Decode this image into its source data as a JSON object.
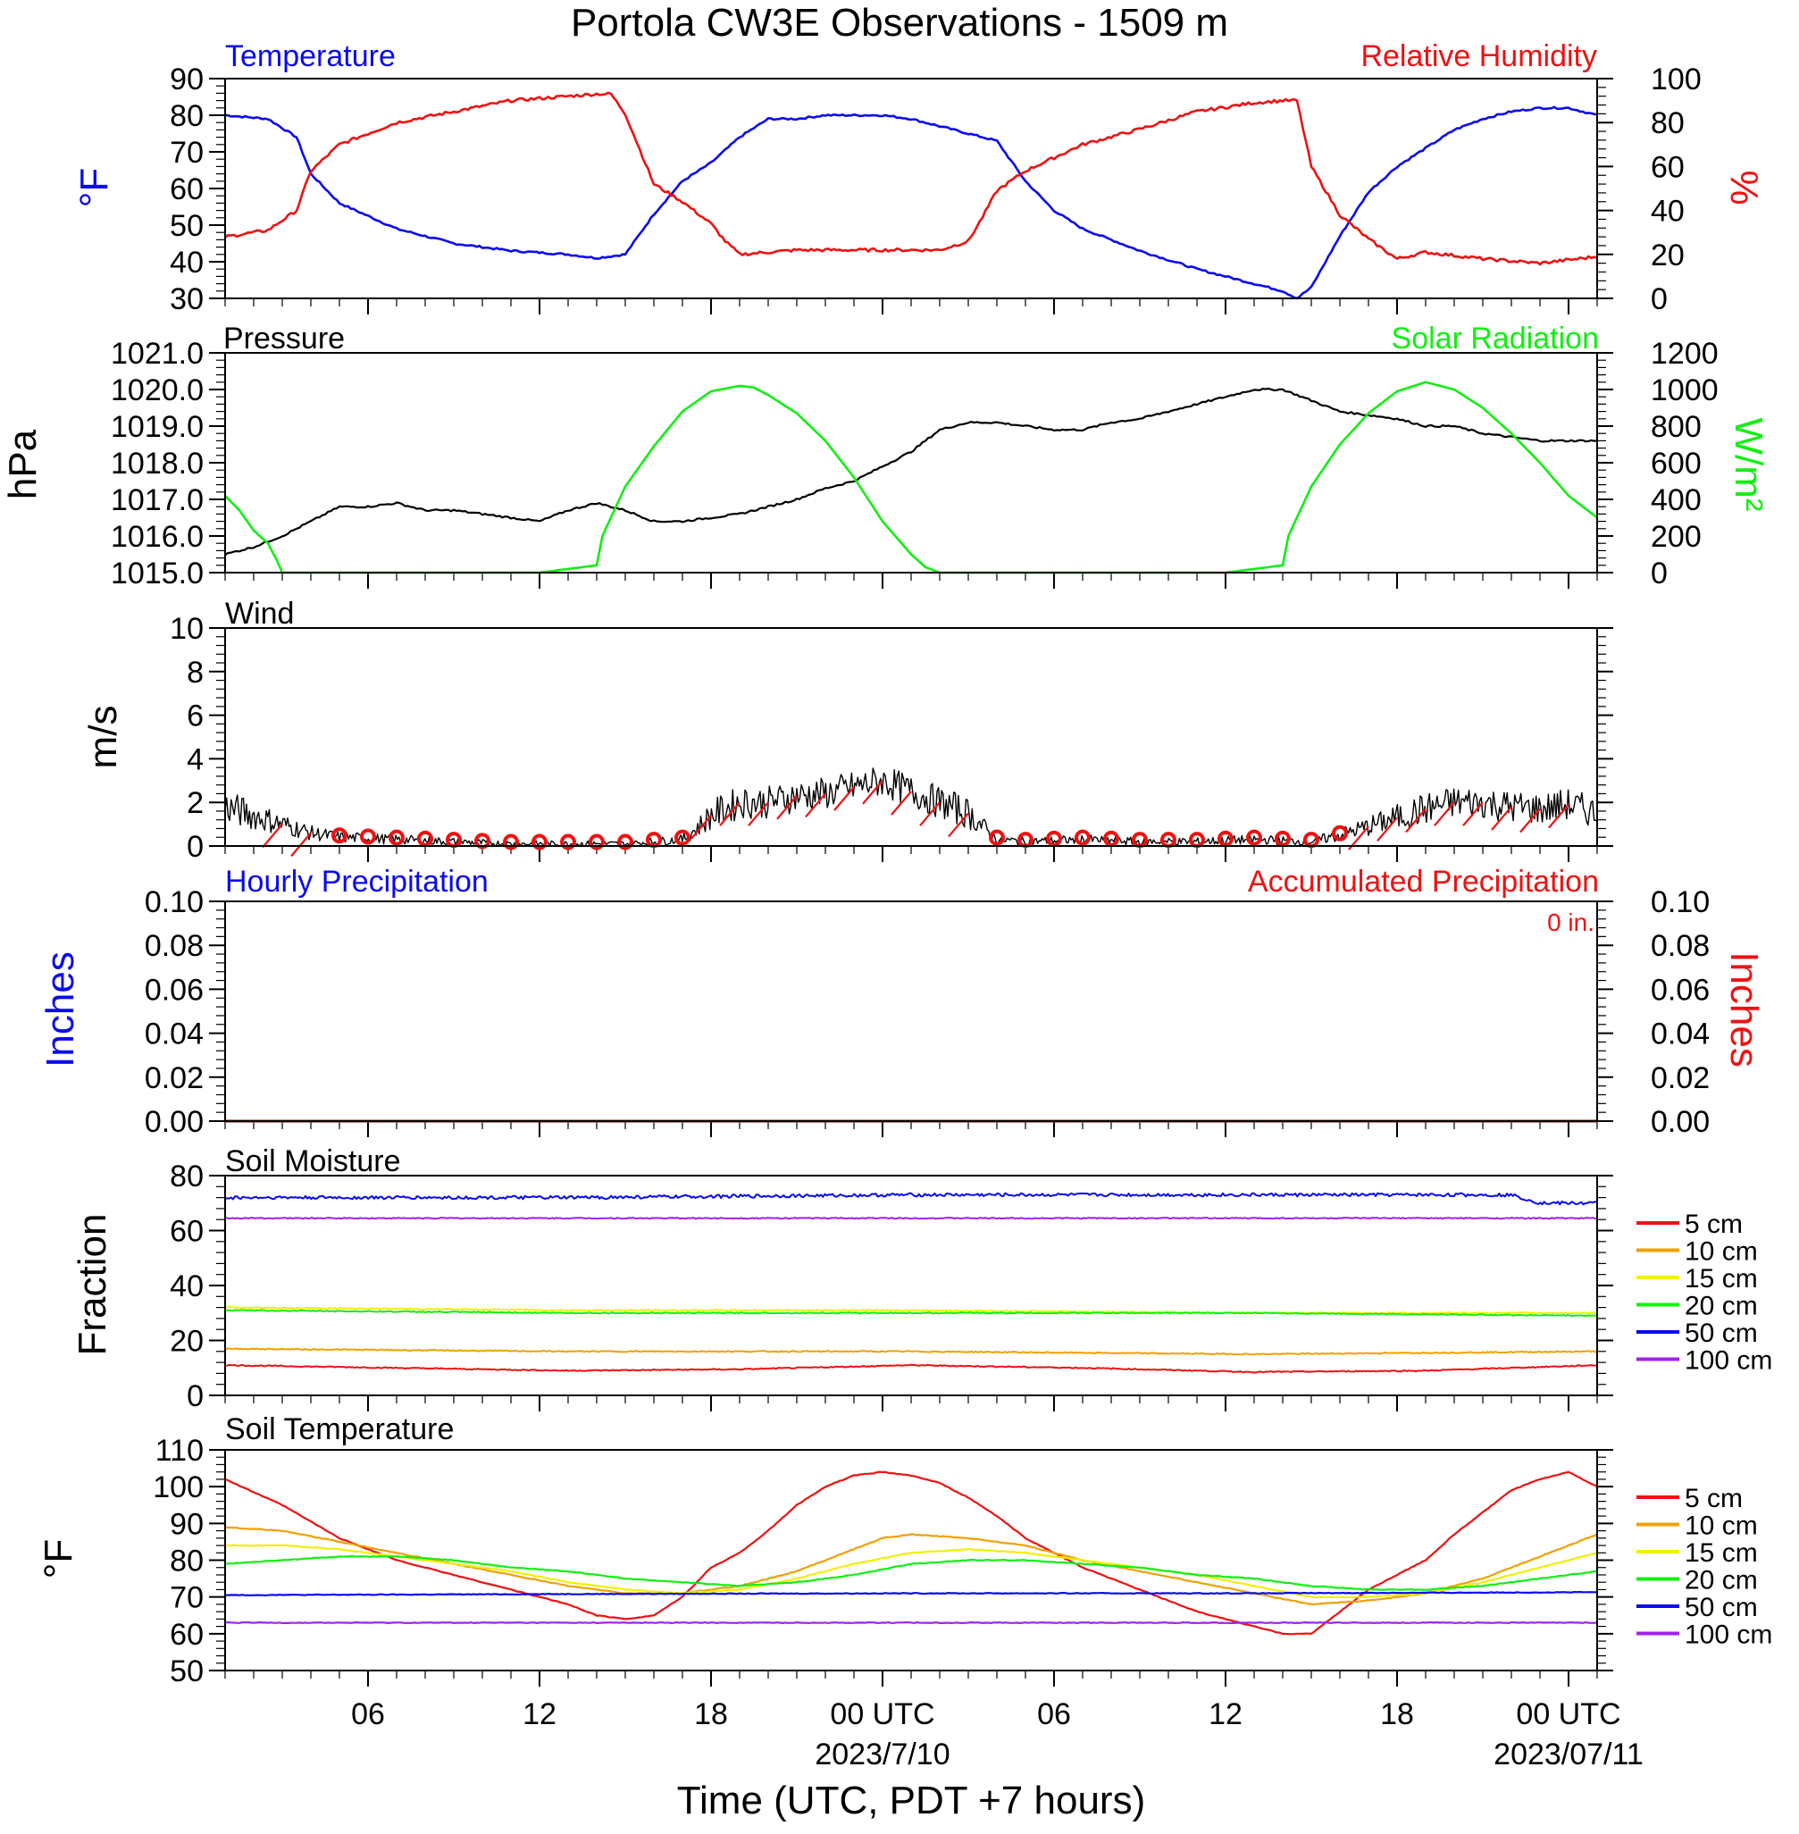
{
  "title": "Portola CW3E Observations - 1509 m",
  "colors": {
    "temperature": "#0a0af0",
    "humidity": "#f01010",
    "pressure": "#000000",
    "solar": "#10f010",
    "wind": "#000000",
    "wind_barb": "#f01010",
    "axis": "#000000"
  },
  "x_axis": {
    "title": "Time (UTC, PDT +7 hours)",
    "range_hours": [
      0,
      48
    ],
    "ticks": [
      {
        "hour": 5,
        "label": "06",
        "date": ""
      },
      {
        "hour": 11,
        "label": "12",
        "date": ""
      },
      {
        "hour": 17,
        "label": "18",
        "date": ""
      },
      {
        "hour": 23,
        "label": "00 UTC",
        "date": "2023/7/10"
      },
      {
        "hour": 29,
        "label": "06",
        "date": ""
      },
      {
        "hour": 35,
        "label": "12",
        "date": ""
      },
      {
        "hour": 41,
        "label": "18",
        "date": ""
      },
      {
        "hour": 47,
        "label": "00 UTC",
        "date": "2023/07/11"
      }
    ]
  },
  "panels": {
    "temp_rh": {
      "left_title": "Temperature",
      "right_title": "Relative Humidity",
      "left_unit": "°F",
      "right_unit": "%",
      "left_ticks": [
        "30",
        "40",
        "50",
        "60",
        "70",
        "80",
        "90"
      ],
      "right_ticks": [
        "0",
        "20",
        "40",
        "60",
        "80",
        "100"
      ]
    },
    "pressure_solar": {
      "left_title": "Pressure",
      "right_title": "Solar Radiation",
      "left_unit": "hPa",
      "right_unit": "W/m²",
      "left_ticks": [
        "1015.0",
        "1016.0",
        "1017.0",
        "1018.0",
        "1019.0",
        "1020.0",
        "1021.0"
      ],
      "right_ticks": [
        "0",
        "200",
        "400",
        "600",
        "800",
        "1000",
        "1200"
      ]
    },
    "wind": {
      "left_title": "Wind",
      "left_unit": "m/s",
      "left_ticks": [
        "0",
        "2",
        "4",
        "6",
        "8",
        "10"
      ]
    },
    "precip": {
      "left_title": "Hourly Precipitation",
      "right_title": "Accumulated Precipitation",
      "accum_label": "0 in.",
      "left_unit": "Inches",
      "right_unit": "Inches",
      "left_ticks": [
        "0.00",
        "0.02",
        "0.04",
        "0.06",
        "0.08",
        "0.10"
      ],
      "right_ticks": [
        "0.00",
        "0.02",
        "0.04",
        "0.06",
        "0.08",
        "0.10"
      ]
    },
    "soil_moisture": {
      "left_title": "Soil Moisture",
      "left_unit": "Fraction",
      "left_ticks": [
        "0",
        "20",
        "40",
        "60",
        "80"
      ],
      "legend": [
        "5 cm",
        "10 cm",
        "15 cm",
        "20 cm",
        "50 cm",
        "100 cm"
      ]
    },
    "soil_temp": {
      "left_title": "Soil Temperature",
      "left_unit": "°F",
      "left_ticks": [
        "50",
        "60",
        "70",
        "80",
        "90",
        "100",
        "110"
      ],
      "legend": [
        "5 cm",
        "10 cm",
        "15 cm",
        "20 cm",
        "50 cm",
        "100 cm"
      ]
    }
  },
  "depth_colors": [
    "#f01010",
    "#f0a000",
    "#f0f000",
    "#10f010",
    "#0a0af0",
    "#a020f0"
  ],
  "chart_data": [
    {
      "type": "line",
      "title": "Temperature",
      "ylabel": "°F",
      "ylim": [
        30,
        90
      ],
      "series": [
        {
          "name": "Temperature",
          "color": "#0a0af0",
          "hours": [
            0,
            1.5,
            2.5,
            3,
            4,
            6,
            8,
            10,
            12,
            13,
            14,
            15,
            16,
            17,
            18,
            19,
            20,
            21,
            22,
            23,
            24,
            25,
            26,
            27,
            28,
            29,
            30,
            32,
            34,
            36,
            37,
            37.5,
            38,
            39,
            40,
            41,
            42,
            43,
            44,
            45,
            46,
            47,
            48
          ],
          "values": [
            80,
            79,
            74,
            64,
            56,
            49,
            45,
            43,
            42,
            41,
            42,
            53,
            62,
            67,
            74,
            79,
            79,
            80,
            80,
            80,
            79,
            77,
            75,
            73,
            62,
            54,
            49,
            43,
            38,
            34,
            32,
            30,
            33,
            47,
            59,
            66,
            71,
            76,
            79,
            81,
            82,
            82,
            80
          ]
        }
      ]
    },
    {
      "type": "line",
      "title": "Relative Humidity",
      "ylabel": "%",
      "ylim": [
        0,
        100
      ],
      "series": [
        {
          "name": "Relative Humidity",
          "color": "#f01010",
          "hours": [
            0,
            1.5,
            2.5,
            3,
            4,
            6,
            8,
            10,
            12,
            13,
            13.5,
            14,
            15,
            16,
            17,
            17.5,
            18,
            20,
            22,
            24,
            25,
            26,
            26.5,
            27,
            28,
            30,
            32,
            34,
            36,
            37,
            37.5,
            38,
            39,
            40,
            41,
            42,
            44,
            46,
            48
          ],
          "values": [
            28,
            31,
            40,
            58,
            70,
            80,
            85,
            90,
            92,
            93,
            93,
            84,
            52,
            44,
            34,
            26,
            20,
            22,
            22,
            22,
            22,
            26,
            37,
            49,
            58,
            70,
            77,
            85,
            89,
            90,
            90,
            60,
            38,
            27,
            18,
            21,
            18,
            16,
            19
          ]
        }
      ]
    },
    {
      "type": "line",
      "title": "Pressure",
      "ylabel": "hPa",
      "ylim": [
        1015,
        1021
      ],
      "series": [
        {
          "name": "Pressure",
          "color": "#000000",
          "hours": [
            0,
            1,
            2,
            3,
            4,
            5,
            6,
            7,
            8,
            9,
            10,
            11,
            12,
            13,
            14,
            15,
            16,
            17,
            18,
            19,
            20,
            21,
            22,
            23,
            24,
            25,
            26,
            27,
            28,
            29,
            30,
            31,
            32,
            33,
            34,
            35,
            36,
            37,
            38,
            39,
            40,
            41,
            42,
            43,
            44,
            45,
            46,
            47,
            48
          ],
          "values": [
            1015.5,
            1015.7,
            1016.0,
            1016.4,
            1016.8,
            1016.8,
            1016.9,
            1016.7,
            1016.7,
            1016.6,
            1016.5,
            1016.4,
            1016.7,
            1016.9,
            1016.7,
            1016.4,
            1016.4,
            1016.5,
            1016.6,
            1016.8,
            1017.0,
            1017.3,
            1017.5,
            1017.9,
            1018.3,
            1018.9,
            1019.1,
            1019.1,
            1019.0,
            1018.9,
            1018.9,
            1019.1,
            1019.2,
            1019.4,
            1019.6,
            1019.8,
            1020.0,
            1020.0,
            1019.7,
            1019.4,
            1019.3,
            1019.2,
            1019.0,
            1019.0,
            1018.8,
            1018.7,
            1018.6,
            1018.6,
            1018.6
          ]
        }
      ]
    },
    {
      "type": "line",
      "title": "Solar Radiation",
      "ylabel": "W/m²",
      "ylim": [
        0,
        1200
      ],
      "series": [
        {
          "name": "Solar Radiation",
          "color": "#10f010",
          "hours": [
            0,
            0.5,
            1,
            1.5,
            1.8,
            2,
            2.2,
            3,
            4,
            5,
            8,
            11,
            13,
            13.2,
            14,
            15,
            16,
            17,
            18,
            18.5,
            19,
            20,
            21,
            22,
            23,
            24,
            24.5,
            25,
            25.2,
            26,
            29,
            32,
            35,
            37,
            37.2,
            38,
            39,
            40,
            41,
            42,
            43,
            44,
            45,
            46,
            47,
            48
          ],
          "values": [
            420,
            340,
            230,
            160,
            70,
            0,
            0,
            0,
            0,
            0,
            0,
            0,
            40,
            200,
            470,
            690,
            880,
            990,
            1020,
            1010,
            970,
            870,
            720,
            520,
            280,
            100,
            30,
            0,
            0,
            0,
            0,
            0,
            0,
            40,
            200,
            470,
            700,
            870,
            990,
            1040,
            1000,
            900,
            760,
            600,
            420,
            300
          ]
        }
      ]
    },
    {
      "type": "line",
      "title": "Wind",
      "ylabel": "m/s",
      "ylim": [
        0,
        10
      ],
      "series": [
        {
          "name": "Wind",
          "color": "#000000",
          "hours": [
            0,
            1,
            2,
            3,
            4,
            6,
            8,
            10,
            12,
            14,
            16,
            16.5,
            17,
            18,
            19,
            20,
            21,
            22,
            23,
            24,
            25,
            26,
            26.5,
            27,
            28,
            30,
            32,
            34,
            36,
            38,
            39,
            40,
            41,
            42,
            43,
            44,
            45,
            46,
            47,
            48
          ],
          "values": [
            1.8,
            1.4,
            1.0,
            0.6,
            0.4,
            0.3,
            0.2,
            0.1,
            0.1,
            0.1,
            0.3,
            0.8,
            1.4,
            2.0,
            2.0,
            2.3,
            2.4,
            2.7,
            3.0,
            2.5,
            2.0,
            1.5,
            0.9,
            0.3,
            0.2,
            0.3,
            0.2,
            0.2,
            0.3,
            0.2,
            0.5,
            0.9,
            1.3,
            1.7,
            2.0,
            2.0,
            1.8,
            1.7,
            1.9,
            1.5
          ]
        }
      ]
    },
    {
      "type": "line",
      "title": "Hourly Precipitation",
      "ylabel": "Inches",
      "ylim": [
        0,
        0.1
      ],
      "series": [
        {
          "name": "Hourly Precipitation",
          "color": "#0a0af0",
          "hours": [
            0,
            48
          ],
          "values": [
            0,
            0
          ]
        }
      ]
    },
    {
      "type": "line",
      "title": "Soil Moisture",
      "ylabel": "Fraction",
      "ylim": [
        0,
        80
      ],
      "series": [
        {
          "name": "5 cm",
          "color": "#f01010",
          "hours": [
            0,
            6,
            12,
            18,
            24,
            30,
            36,
            42,
            48
          ],
          "values": [
            11,
            10,
            9,
            9.5,
            11,
            10,
            8.5,
            9,
            11
          ]
        },
        {
          "name": "10 cm",
          "color": "#f0a000",
          "hours": [
            0,
            12,
            24,
            36,
            48
          ],
          "values": [
            17,
            16,
            16,
            15,
            16
          ]
        },
        {
          "name": "15 cm",
          "color": "#f0f000",
          "hours": [
            0,
            12,
            24,
            36,
            48
          ],
          "values": [
            32,
            31,
            31,
            30,
            30
          ]
        },
        {
          "name": "20 cm",
          "color": "#10f010",
          "hours": [
            0,
            12,
            24,
            36,
            48
          ],
          "values": [
            31,
            30,
            30,
            30,
            29
          ]
        },
        {
          "name": "50 cm",
          "color": "#0a0af0",
          "hours": [
            0,
            12,
            24,
            36,
            45,
            46,
            48
          ],
          "values": [
            72,
            72,
            73,
            73,
            73,
            70,
            70
          ]
        },
        {
          "name": "100 cm",
          "color": "#a020f0",
          "hours": [
            0,
            24,
            48
          ],
          "values": [
            64.5,
            64.5,
            64.5
          ]
        }
      ]
    },
    {
      "type": "line",
      "title": "Soil Temperature",
      "ylabel": "°F",
      "ylim": [
        50,
        110
      ],
      "series": [
        {
          "name": "5 cm",
          "color": "#f01010",
          "hours": [
            0,
            2,
            4,
            6,
            8,
            10,
            12,
            13,
            14,
            15,
            16,
            17,
            18,
            19,
            20,
            21,
            22,
            23,
            24,
            25,
            26,
            27,
            28,
            30,
            32,
            34,
            36,
            37,
            38,
            39,
            40,
            41,
            42,
            43,
            44,
            45,
            46,
            47,
            48
          ],
          "values": [
            102,
            95,
            86,
            80,
            76,
            72,
            68,
            65,
            64,
            65,
            70,
            78,
            82,
            88,
            95,
            100,
            103,
            104,
            103,
            101,
            97,
            92,
            86,
            78,
            72,
            66,
            62,
            60,
            60,
            66,
            72,
            76,
            80,
            87,
            93,
            99,
            102,
            104,
            100
          ]
        },
        {
          "name": "10 cm",
          "color": "#f0a000",
          "hours": [
            0,
            2,
            4,
            6,
            8,
            10,
            12,
            14,
            16,
            18,
            20,
            22,
            23,
            24,
            26,
            28,
            30,
            32,
            34,
            36,
            38,
            40,
            42,
            44,
            46,
            48
          ],
          "values": [
            89,
            88,
            85,
            82,
            79,
            76,
            73,
            71,
            71,
            73,
            77,
            83,
            86,
            87,
            86,
            84,
            80,
            77,
            74,
            71,
            68,
            69,
            71,
            75,
            81,
            87
          ]
        },
        {
          "name": "15 cm",
          "color": "#f0f000",
          "hours": [
            0,
            2,
            4,
            6,
            8,
            10,
            12,
            14,
            16,
            18,
            20,
            22,
            24,
            26,
            28,
            30,
            32,
            34,
            36,
            38,
            40,
            42,
            44,
            46,
            48
          ],
          "values": [
            84,
            84,
            83,
            81,
            79,
            77,
            74,
            72,
            71,
            72,
            75,
            79,
            82,
            83,
            82,
            80,
            78,
            76,
            73,
            70,
            70,
            71,
            74,
            78,
            82
          ]
        },
        {
          "name": "20 cm",
          "color": "#10f010",
          "hours": [
            0,
            2,
            4,
            6,
            8,
            10,
            12,
            14,
            16,
            18,
            20,
            22,
            24,
            26,
            28,
            30,
            32,
            34,
            36,
            38,
            40,
            42,
            44,
            46,
            48
          ],
          "values": [
            79,
            80,
            81,
            81,
            80,
            78,
            77,
            75,
            74,
            73,
            74,
            76,
            79,
            80,
            80,
            79,
            78,
            76,
            75,
            73,
            72,
            72,
            73,
            75,
            77
          ]
        },
        {
          "name": "50 cm",
          "color": "#0a0af0",
          "hours": [
            0,
            12,
            24,
            36,
            48
          ],
          "values": [
            70.5,
            70.8,
            71,
            71,
            71.3
          ]
        },
        {
          "name": "100 cm",
          "color": "#a020f0",
          "hours": [
            0,
            24,
            48
          ],
          "values": [
            63,
            63,
            63
          ]
        }
      ]
    }
  ]
}
